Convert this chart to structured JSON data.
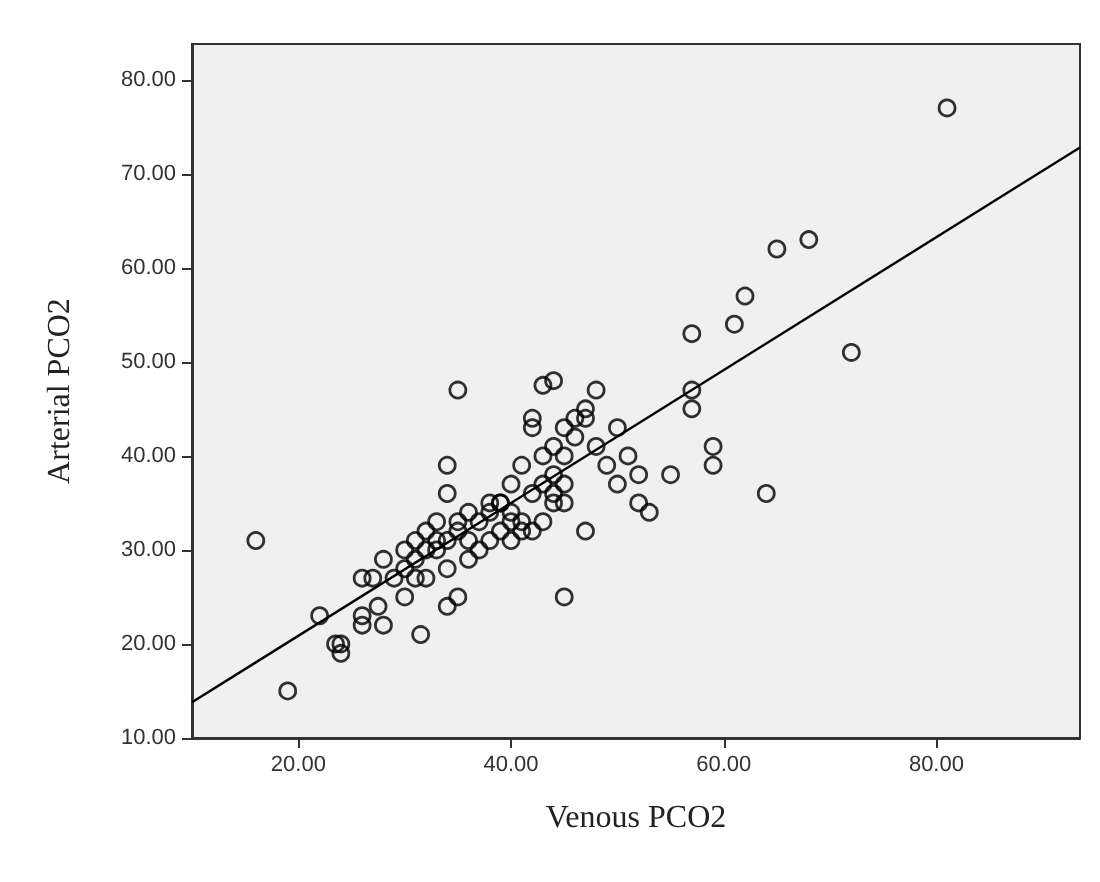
{
  "chart_data": {
    "type": "scatter",
    "xlabel": "Venous PCO2",
    "ylabel": "Arterial PCO2",
    "xlim": [
      10,
      93.5
    ],
    "ylim": [
      10,
      83.8
    ],
    "xticks": [
      {
        "value": 20,
        "label": "20.00"
      },
      {
        "value": 40,
        "label": "40.00"
      },
      {
        "value": 60,
        "label": "60.00"
      },
      {
        "value": 80,
        "label": "80.00"
      }
    ],
    "yticks": [
      {
        "value": 10,
        "label": "10.00"
      },
      {
        "value": 20,
        "label": "20.00"
      },
      {
        "value": 30,
        "label": "30.00"
      },
      {
        "value": 40,
        "label": "40.00"
      },
      {
        "value": 50,
        "label": "50.00"
      },
      {
        "value": 60,
        "label": "60.00"
      },
      {
        "value": 70,
        "label": "70.00"
      },
      {
        "value": 80,
        "label": "80.00"
      }
    ],
    "grid": false,
    "marker": "circle",
    "series": [
      {
        "color": "#000000",
        "x": [
          81,
          68,
          65,
          62,
          57,
          61,
          72,
          57,
          57,
          59,
          59,
          64,
          55,
          53,
          52,
          52,
          51,
          50,
          50,
          49,
          48,
          48,
          47,
          47,
          46,
          46,
          45,
          45,
          44,
          43,
          42,
          42,
          44,
          43,
          44,
          45,
          44,
          45,
          44,
          43,
          41,
          42,
          40,
          39,
          40,
          38,
          38,
          37,
          35,
          34,
          36,
          35,
          34,
          34,
          33,
          33,
          32,
          32,
          31,
          31,
          30,
          30,
          29,
          28,
          31,
          32,
          34,
          35,
          36,
          37,
          38,
          39,
          40,
          41,
          42,
          43,
          45,
          47,
          16,
          19,
          22,
          24,
          23.5,
          24,
          26,
          27,
          26,
          26,
          27.5,
          28,
          30,
          31.5,
          34,
          35,
          39,
          40,
          41,
          36,
          33
        ],
        "values": [
          77,
          63,
          62,
          57,
          53,
          54,
          51,
          47,
          45,
          41,
          39,
          36,
          38,
          34,
          35,
          38,
          40,
          37,
          43,
          39,
          47,
          41,
          44,
          45,
          44,
          42,
          43,
          40,
          48,
          47.5,
          44,
          43,
          41,
          40,
          38,
          37,
          36,
          35,
          35,
          37,
          39,
          36,
          37,
          35,
          34,
          35,
          34,
          33,
          47,
          39,
          34,
          33,
          36,
          31,
          33,
          30,
          32,
          30,
          31,
          29,
          28,
          30,
          27,
          29,
          27,
          27,
          28,
          32,
          29,
          30,
          31,
          32,
          31,
          33,
          32,
          33,
          25,
          32,
          31,
          15,
          23,
          20,
          20,
          19,
          27,
          27,
          22,
          23,
          24,
          22,
          25,
          21,
          24,
          25,
          35,
          33,
          32,
          31,
          31
        ]
      },
      {
        "type": "line",
        "color": "#000000",
        "marker": "none",
        "x": [
          10,
          93.5
        ],
        "values": [
          13.8,
          72.8
        ]
      }
    ]
  }
}
